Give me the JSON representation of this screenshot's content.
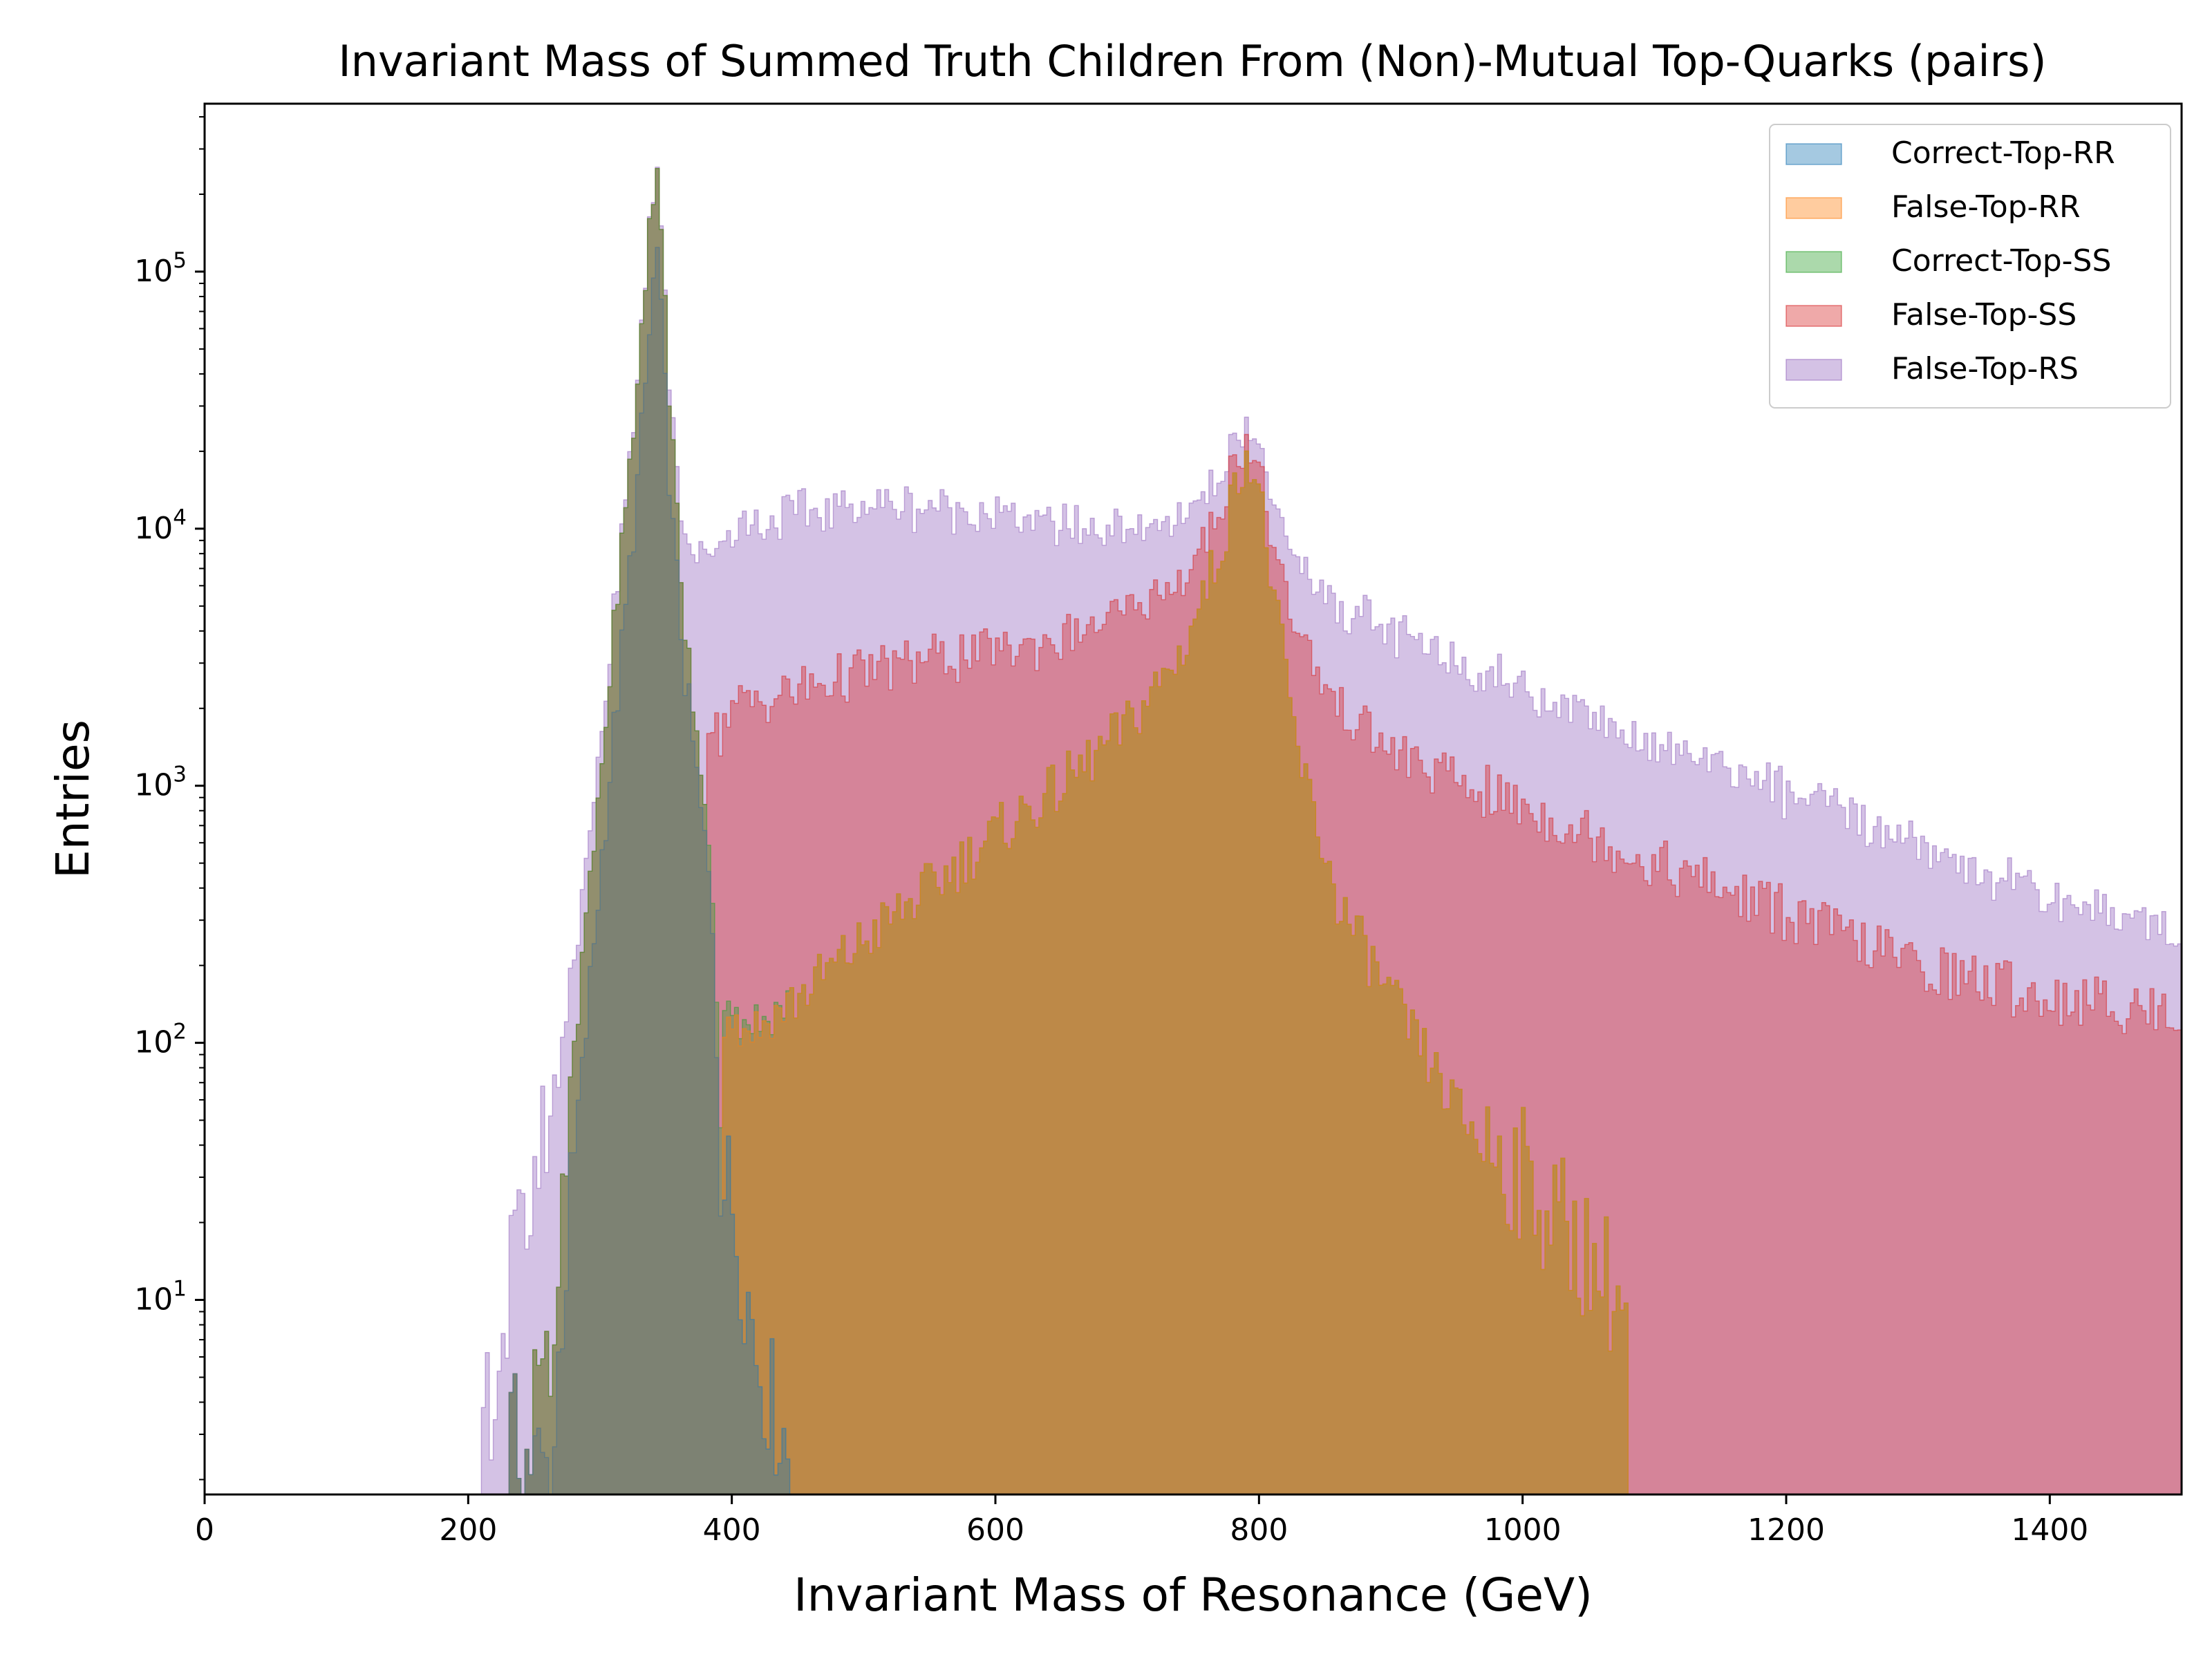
{
  "chart_data": {
    "type": "histogram",
    "title": "Invariant Mass of Summed Truth Children From (Non)-Mutual Top-Quarks (pairs)",
    "xlabel": "Invariant Mass of Resonance (GeV)",
    "ylabel": "Entries",
    "xlim": [
      0,
      1500
    ],
    "ylim": [
      1.75,
      450000
    ],
    "yscale": "log",
    "stacked": true,
    "histtype": "stepfilled",
    "grid": false,
    "legend_position": "top-right",
    "xticks": [
      0,
      200,
      400,
      600,
      800,
      1000,
      1200,
      1400
    ],
    "xtick_labels": [
      "0",
      "200",
      "400",
      "600",
      "800",
      "1000",
      "1200",
      "1400"
    ],
    "yticks": [
      10,
      100,
      1000,
      10000,
      100000
    ],
    "ytick_labels": [
      {
        "base": "10",
        "exp": "1"
      },
      {
        "base": "10",
        "exp": "2"
      },
      {
        "base": "10",
        "exp": "3"
      },
      {
        "base": "10",
        "exp": "4"
      },
      {
        "base": "10",
        "exp": "5"
      }
    ],
    "series": [
      {
        "name": "Correct-Top-RR",
        "color": "#1f77b4",
        "points": [
          [
            230,
            3
          ],
          [
            264,
            2
          ],
          [
            270,
            8
          ],
          [
            280,
            30
          ],
          [
            290,
            120
          ],
          [
            300,
            450
          ],
          [
            310,
            1500
          ],
          [
            320,
            5000
          ],
          [
            330,
            18000
          ],
          [
            338,
            60000
          ],
          [
            343,
            130000
          ],
          [
            348,
            45000
          ],
          [
            355,
            10000
          ],
          [
            365,
            2500
          ],
          [
            375,
            900
          ],
          [
            385,
            350
          ],
          [
            392,
            30
          ],
          [
            400,
            25
          ],
          [
            410,
            12
          ],
          [
            420,
            6
          ],
          [
            430,
            4
          ],
          [
            440,
            3
          ],
          [
            445,
            2
          ]
        ]
      },
      {
        "name": "False-Top-RR",
        "color": "#ff7f0e",
        "points": [
          [
            392,
            100
          ],
          [
            420,
            110
          ],
          [
            450,
            150
          ],
          [
            500,
            250
          ],
          [
            550,
            400
          ],
          [
            600,
            650
          ],
          [
            650,
            1000
          ],
          [
            700,
            1700
          ],
          [
            740,
            3200
          ],
          [
            770,
            8000
          ],
          [
            790,
            21000
          ],
          [
            800,
            14000
          ],
          [
            815,
            4000
          ],
          [
            830,
            1300
          ],
          [
            860,
            350
          ],
          [
            900,
            150
          ],
          [
            950,
            55
          ],
          [
            1000,
            30
          ],
          [
            1050,
            15
          ],
          [
            1080,
            9
          ],
          [
            1100,
            0
          ]
        ]
      },
      {
        "name": "Correct-Top-SS",
        "color": "#2ca02c",
        "points": [
          [
            250,
            3
          ],
          [
            264,
            3
          ],
          [
            270,
            12
          ],
          [
            280,
            45
          ],
          [
            290,
            180
          ],
          [
            300,
            700
          ],
          [
            310,
            2200
          ],
          [
            320,
            7500
          ],
          [
            330,
            28000
          ],
          [
            338,
            90000
          ],
          [
            343,
            140000
          ],
          [
            348,
            50000
          ],
          [
            355,
            12000
          ],
          [
            365,
            1200
          ],
          [
            375,
            300
          ],
          [
            385,
            80
          ],
          [
            392,
            20
          ],
          [
            400,
            10
          ],
          [
            430,
            3
          ],
          [
            445,
            2
          ]
        ]
      },
      {
        "name": "False-Top-SS",
        "color": "#d62728",
        "points": [
          [
            380,
            1200
          ],
          [
            400,
            1900
          ],
          [
            450,
            2200
          ],
          [
            500,
            2500
          ],
          [
            550,
            2700
          ],
          [
            600,
            2700
          ],
          [
            650,
            2700
          ],
          [
            700,
            2900
          ],
          [
            750,
            3200
          ],
          [
            780,
            3500
          ],
          [
            800,
            3200
          ],
          [
            830,
            2500
          ],
          [
            860,
            1700
          ],
          [
            900,
            1200
          ],
          [
            1000,
            800
          ],
          [
            1100,
            500
          ],
          [
            1200,
            320
          ],
          [
            1300,
            200
          ],
          [
            1400,
            150
          ],
          [
            1500,
            130
          ]
        ]
      },
      {
        "name": "False-Top-RS",
        "color": "#9467bd",
        "points": [
          [
            210,
            3
          ],
          [
            350,
            5000
          ],
          [
            400,
            8000
          ],
          [
            450,
            9000
          ],
          [
            500,
            9500
          ],
          [
            550,
            9000
          ],
          [
            600,
            8000
          ],
          [
            650,
            6500
          ],
          [
            700,
            5000
          ],
          [
            750,
            4500
          ],
          [
            790,
            3500
          ],
          [
            800,
            4000
          ],
          [
            830,
            3500
          ],
          [
            860,
            3000
          ],
          [
            900,
            2500
          ],
          [
            1000,
            1600
          ],
          [
            1100,
            1000
          ],
          [
            1200,
            620
          ],
          [
            1300,
            380
          ],
          [
            1400,
            220
          ],
          [
            1500,
            150
          ]
        ]
      }
    ]
  }
}
